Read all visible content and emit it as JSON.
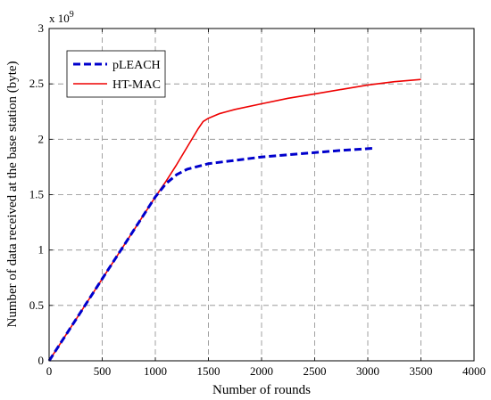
{
  "chart_data": {
    "type": "line",
    "title": "",
    "xlabel": "Number of rounds",
    "ylabel": "Number of data received at the base station (byte)",
    "y_multiplier_label": "x 10",
    "y_multiplier_exponent": "9",
    "xlim": [
      0,
      4000
    ],
    "ylim": [
      0,
      3
    ],
    "x_ticks": [
      "0",
      "500",
      "1000",
      "1500",
      "2000",
      "2500",
      "3000",
      "3500",
      "4000"
    ],
    "y_ticks": [
      "0",
      "0.5",
      "1",
      "1.5",
      "2",
      "2.5",
      "3"
    ],
    "grid": true,
    "legend_position": "top-left",
    "series": [
      {
        "name": "pLEACH",
        "color": "#0000cc",
        "style": "dashed",
        "x": [
          0,
          250,
          500,
          750,
          1000,
          1100,
          1200,
          1300,
          1500,
          1750,
          2000,
          2250,
          2500,
          2750,
          3000,
          3070
        ],
        "y": [
          0,
          0.37,
          0.74,
          1.11,
          1.48,
          1.6,
          1.68,
          1.73,
          1.78,
          1.81,
          1.84,
          1.86,
          1.88,
          1.9,
          1.915,
          1.92
        ]
      },
      {
        "name": "HT-MAC",
        "color": "#ee0000",
        "style": "solid",
        "x": [
          0,
          250,
          500,
          750,
          1000,
          1100,
          1200,
          1300,
          1400,
          1450,
          1500,
          1600,
          1750,
          2000,
          2250,
          2500,
          2750,
          3000,
          3250,
          3500
        ],
        "y": [
          0,
          0.37,
          0.74,
          1.11,
          1.48,
          1.62,
          1.77,
          1.93,
          2.09,
          2.16,
          2.19,
          2.23,
          2.27,
          2.32,
          2.37,
          2.41,
          2.45,
          2.49,
          2.52,
          2.54
        ]
      }
    ]
  }
}
